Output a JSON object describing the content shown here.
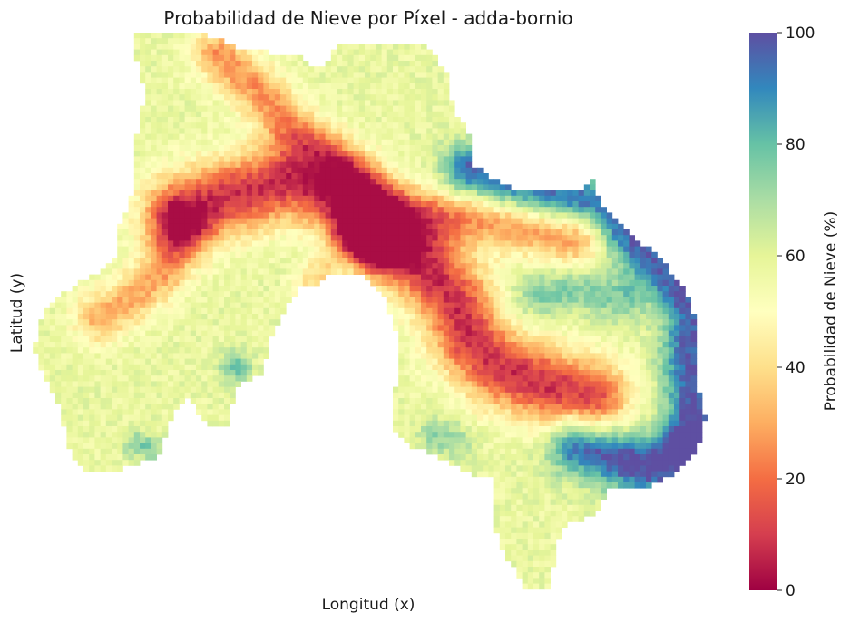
{
  "chart_data": {
    "type": "heatmap",
    "title": "Probabilidad de Nieve por Píxel - adda-bornio",
    "xlabel": "Longitud (x)",
    "ylabel": "Latitud (y)",
    "colorbar": {
      "label": "Probabilidad de Nieve (%)",
      "range": [
        0,
        100
      ],
      "ticks": [
        "0",
        "20",
        "40",
        "60",
        "80",
        "100"
      ],
      "colormap": "Spectral",
      "stops": [
        "#9e0142",
        "#d53e4f",
        "#f46d43",
        "#fdae61",
        "#fee08b",
        "#ffffbf",
        "#e6f598",
        "#abdda4",
        "#66c2a5",
        "#3288bd",
        "#5e4fa2"
      ]
    },
    "grid": false,
    "description_values": {
      "min_zone_value": 5,
      "max_zone_value": 100,
      "typical_value": 55
    }
  }
}
